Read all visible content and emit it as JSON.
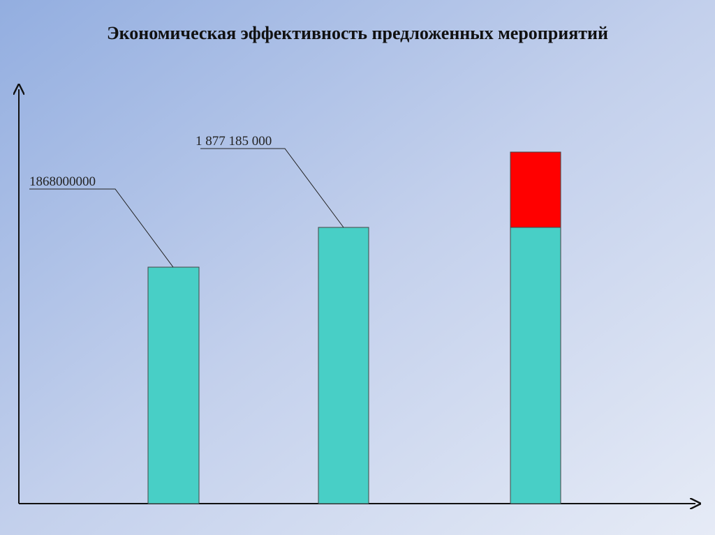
{
  "title": "Экономическая эффективность предложенных мероприятий",
  "labels": [
    "1868000000",
    "1 877 185 000"
  ]
}
